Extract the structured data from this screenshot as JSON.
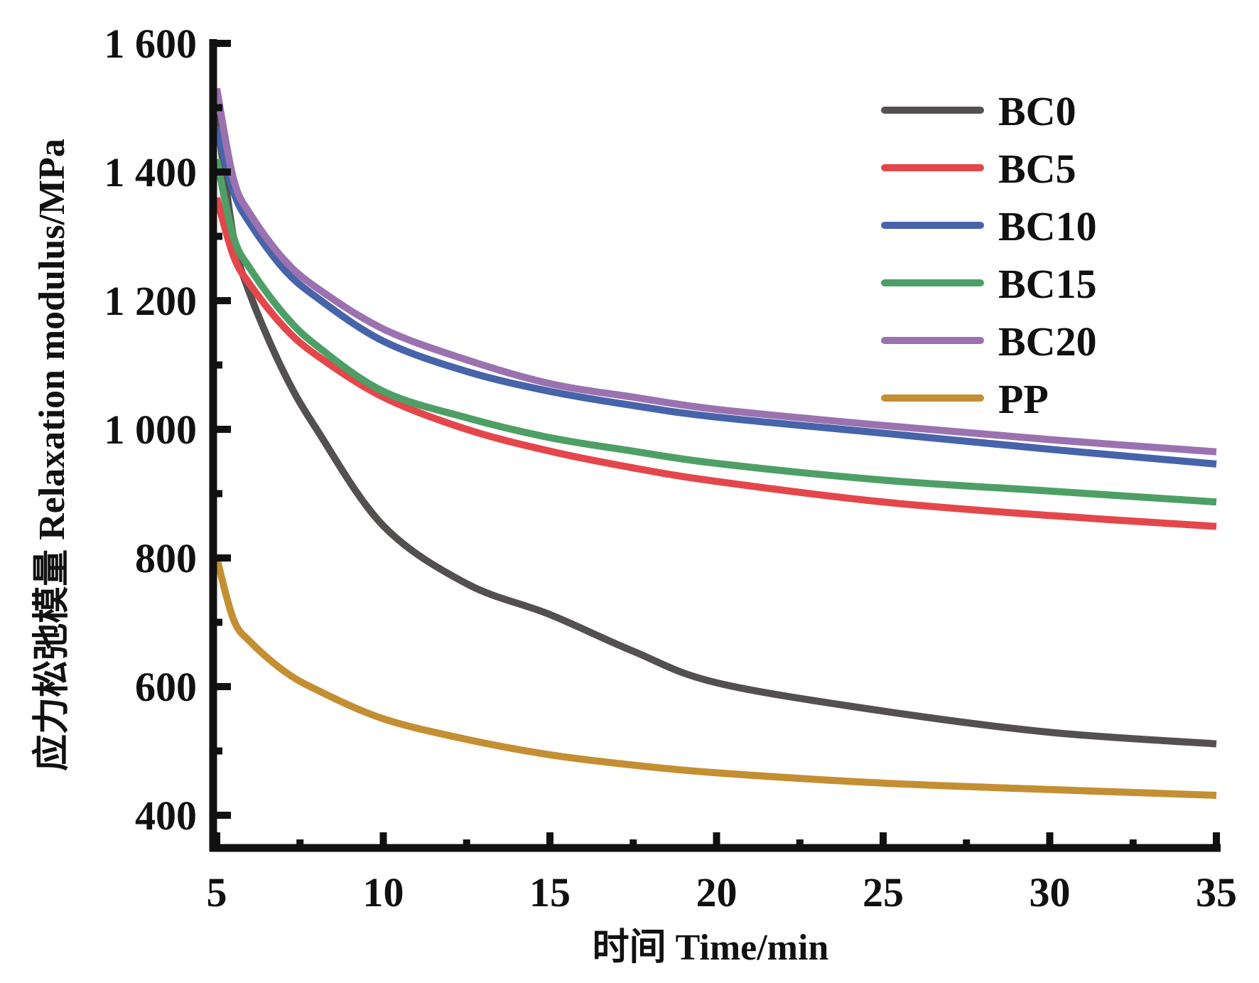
{
  "chart_data": {
    "type": "line",
    "title": "",
    "xlabel": "时间 Time/min",
    "ylabel": "应力松弛模量 Relaxation modulus/MPa",
    "xlim": [
      5,
      35
    ],
    "ylim": [
      350,
      1600
    ],
    "xticks": [
      5,
      10,
      15,
      20,
      25,
      30,
      35
    ],
    "xtick_labels": [
      "5",
      "10",
      "15",
      "20",
      "25",
      "30",
      "35"
    ],
    "xminor_ticks": [
      7.5,
      12.5,
      17.5,
      22.5,
      27.5,
      32.5
    ],
    "yticks": [
      400,
      600,
      800,
      1000,
      1200,
      1400,
      1600
    ],
    "ytick_labels": [
      "400",
      "600",
      "800",
      "1 000",
      "1 200",
      "1 400",
      "1 600"
    ],
    "yminor_ticks": [
      500,
      700,
      900,
      1100,
      1300,
      1500
    ],
    "grid": false,
    "legend_position": "top-right",
    "x": [
      5,
      5.5,
      6,
      7,
      8,
      10,
      12.5,
      15,
      17.5,
      20,
      25,
      30,
      35
    ],
    "series": [
      {
        "name": "BC0",
        "color": "#545050",
        "values": [
          1490,
          1300,
          1210,
          1090,
          1000,
          850,
          760,
          712,
          655,
          606,
          562,
          529,
          511
        ]
      },
      {
        "name": "BC5",
        "color": "#e4474b",
        "values": [
          1360,
          1270,
          1225,
          1160,
          1115,
          1050,
          1000,
          966,
          940,
          919,
          887,
          866,
          849
        ]
      },
      {
        "name": "BC10",
        "color": "#4763aa",
        "values": [
          1470,
          1370,
          1320,
          1250,
          1205,
          1137,
          1090,
          1059,
          1037,
          1019,
          994,
          969,
          946
        ]
      },
      {
        "name": "BC15",
        "color": "#4e9f66",
        "values": [
          1420,
          1300,
          1250,
          1180,
          1130,
          1059,
          1018,
          987,
          966,
          947,
          921,
          904,
          887
        ]
      },
      {
        "name": "BC20",
        "color": "#9b72b0",
        "values": [
          1530,
          1390,
          1335,
          1265,
          1220,
          1156,
          1108,
          1071,
          1050,
          1031,
          1006,
          984,
          965
        ]
      },
      {
        "name": "PP",
        "color": "#c48f33",
        "values": [
          800,
          705,
          670,
          625,
          595,
          550,
          518,
          494,
          478,
          466,
          450,
          440,
          431
        ]
      }
    ]
  }
}
